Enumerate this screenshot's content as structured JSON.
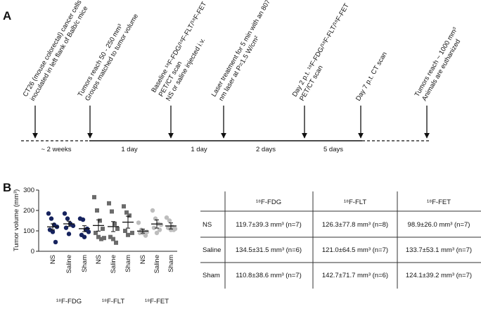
{
  "panel_a": {
    "label": "A",
    "events": [
      {
        "lines": [
          "CT26 (mouse colorectal) cancer cells",
          "inoculated in left flank of Balb/c mice"
        ]
      },
      {
        "lines": [
          "Tumors reach 50 - 250 mm³",
          "Groups matched to tumor volume"
        ]
      },
      {
        "lines": [
          "Baseline ¹⁸F-FDG/¹⁸F-FLT/¹⁸F-FET",
          "PET/CT scan",
          "NS or saline injected i.v."
        ]
      },
      {
        "lines": [
          "Laser treatment for 5 min with an 807",
          "nm laser at P=1.5 W/cm²"
        ]
      },
      {
        "lines": [
          "Day 2 p.t. ¹⁸F-FDG/¹⁸F-FLT/¹⁸F-FET",
          "PET/CT scan"
        ]
      },
      {
        "lines": [
          "Day 7 p.t. CT scan"
        ]
      },
      {
        "lines": [
          "Tumors reach ~ 1000 mm³",
          "Animals are euthanized"
        ]
      }
    ],
    "intervals": [
      "~ 2 weeks",
      "1 day",
      "1 day",
      "2 days",
      "5 days"
    ]
  },
  "panel_b": {
    "label": "B",
    "chart_data": {
      "type": "scatter",
      "y_label": "Tumor volume (mm³)",
      "ylim": [
        0,
        300
      ],
      "yticks": [
        0,
        100,
        200,
        300
      ],
      "categories": [
        "NS",
        "Saline",
        "Sham"
      ],
      "series": [
        {
          "name": "¹⁸F-FDG",
          "color": "#16235e",
          "values": [
            [
              185,
              160,
              130,
              120,
              105,
              95,
              45
            ],
            [
              185,
              160,
              135,
              125,
              115,
              85
            ],
            [
              160,
              155,
              105,
              95,
              80,
              70,
              110
            ]
          ],
          "means": [
            119.7,
            134.5,
            110.8
          ],
          "errors": [
            14.9,
            12.9,
            14.6
          ]
        },
        {
          "name": "¹⁸F-FLT",
          "color": "#6b6b6b",
          "values": [
            [
              265,
              200,
              150,
              110,
              90,
              70,
              60,
              65
            ],
            [
              235,
              195,
              135,
              110,
              70,
              60,
              42
            ],
            [
              220,
              190,
              175,
              90,
              100,
              80
            ]
          ],
          "means": [
            126.3,
            121.0,
            142.7
          ],
          "errors": [
            27.5,
            24.4,
            29.3
          ]
        },
        {
          "name": "¹⁸F-FET",
          "color": "#bdbdbd",
          "values": [
            [
              140,
              105,
              95,
              95,
              90,
              90,
              77
            ],
            [
              200,
              160,
              135,
              130,
              115,
              90,
              105
            ],
            [
              165,
              150,
              120,
              110,
              115,
              105,
              105
            ]
          ],
          "means": [
            98.9,
            133.7,
            124.1
          ],
          "errors": [
            9.8,
            20.1,
            14.8
          ]
        }
      ]
    },
    "table": {
      "columns": [
        "¹⁸F-FDG",
        "¹⁸F-FLT",
        "¹⁸F-FET"
      ],
      "rows": [
        {
          "label": "NS",
          "cells": [
            "119.7±39.3 mm³ (n=7)",
            "126.3±77.8 mm³ (n=8)",
            "98.9±26.0 mm³ (n=7)"
          ]
        },
        {
          "label": "Saline",
          "cells": [
            "134.5±31.5 mm³ (n=6)",
            "121.0±64.5 mm³ (n=7)",
            "133.7±53.1 mm³ (n=7)"
          ]
        },
        {
          "label": "Sham",
          "cells": [
            "110.8±38.6 mm³ (n=7)",
            "142.7±71.7 mm³ (n=6)",
            "124.1±39.2 mm³ (n=7)"
          ]
        }
      ]
    }
  }
}
